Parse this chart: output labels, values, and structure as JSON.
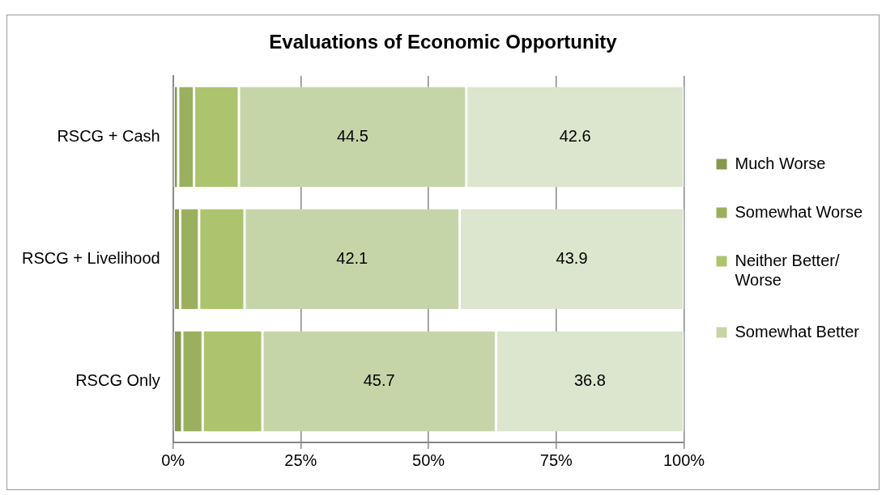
{
  "chart_data": {
    "type": "bar",
    "title": "Evaluations of Economic Opportunity",
    "orientation": "horizontal",
    "stacked": true,
    "categories": [
      "RSCG + Cash",
      "RSCG + Livelihood",
      "RSCG Only"
    ],
    "series": [
      {
        "name": "Much Worse",
        "color": "#86994f",
        "values": [
          1.0,
          1.4,
          1.8
        ]
      },
      {
        "name": "Somewhat Worse",
        "color": "#9bb05e",
        "values": [
          3.1,
          3.7,
          4.0
        ]
      },
      {
        "name": "Neither Better/ Worse",
        "color": "#adc46e",
        "values": [
          8.8,
          8.9,
          11.7
        ]
      },
      {
        "name": "Somewhat Better",
        "color": "#c6d5a8",
        "values": [
          44.5,
          42.1,
          45.7
        ],
        "value_labels": [
          "44.5",
          "42.1",
          "45.7"
        ]
      },
      {
        "color": "#dce5cd",
        "values": [
          42.6,
          43.9,
          36.8
        ],
        "value_labels": [
          "42.6",
          "43.9",
          "36.8"
        ]
      }
    ],
    "xlim": [
      0,
      100
    ],
    "xticks": [
      {
        "value": 0,
        "label": "0%"
      },
      {
        "value": 25,
        "label": "25%"
      },
      {
        "value": 50,
        "label": "50%"
      },
      {
        "value": 75,
        "label": "75%"
      },
      {
        "value": 100,
        "label": "100%"
      }
    ],
    "grid": "x",
    "legend": "right"
  }
}
